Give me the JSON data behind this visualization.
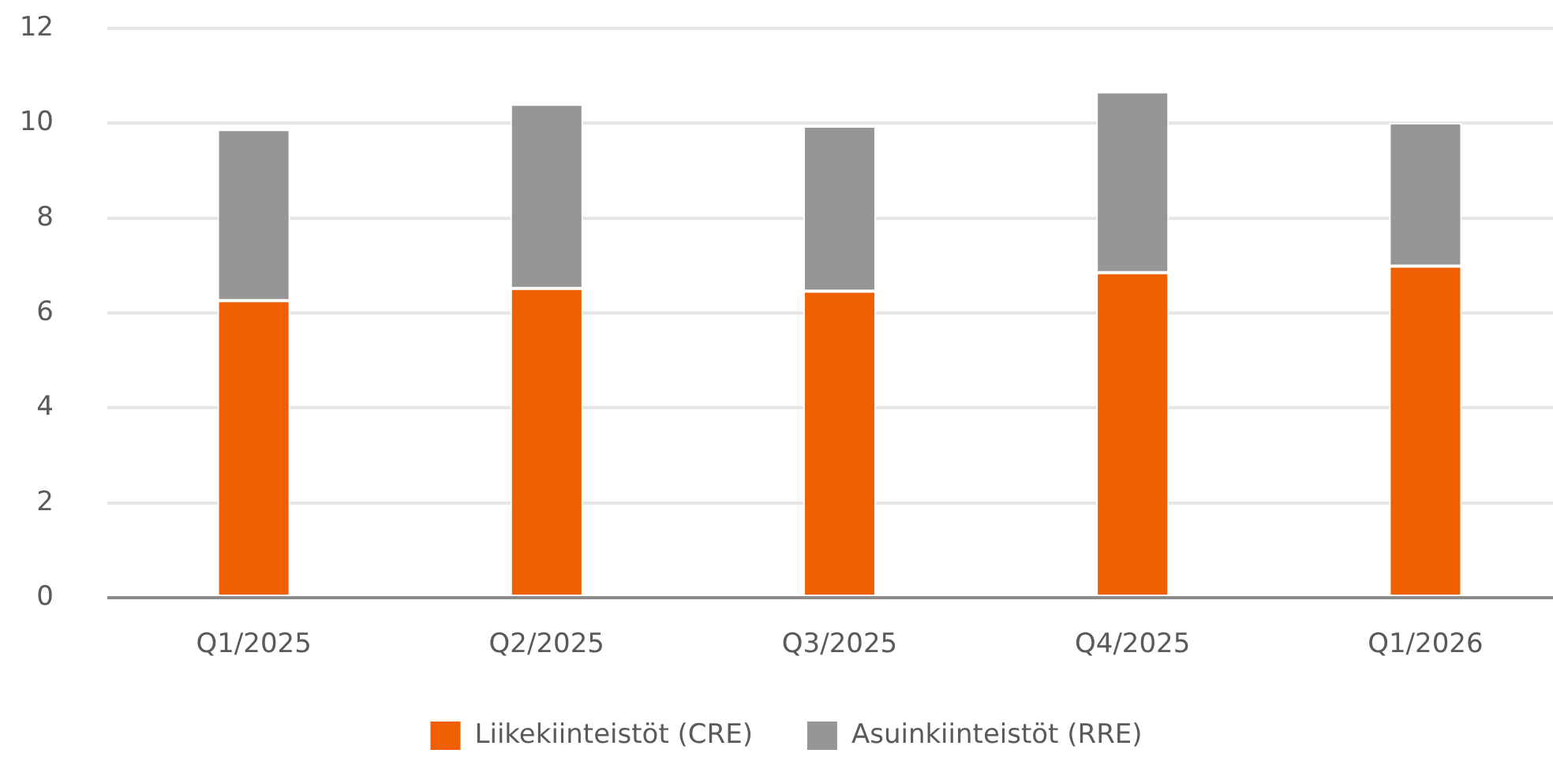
{
  "chart_data": {
    "type": "bar",
    "stacked": true,
    "categories": [
      "Q1/2025",
      "Q2/2025",
      "Q3/2025",
      "Q4/2025",
      "Q1/2026"
    ],
    "series": [
      {
        "name": "Liikekiinteistöt (CRE)",
        "color": "#f05f00",
        "values": [
          6.26,
          6.52,
          6.46,
          6.85,
          6.99
        ]
      },
      {
        "name": "Asuinkiinteistöt (RRE)",
        "color": "#969696",
        "values": [
          3.61,
          3.88,
          3.48,
          3.81,
          3.02
        ]
      }
    ],
    "ylim": [
      0,
      12
    ],
    "yticks": [
      0,
      2,
      4,
      6,
      8,
      10,
      12
    ],
    "grid": "y",
    "legend": "bottom"
  }
}
